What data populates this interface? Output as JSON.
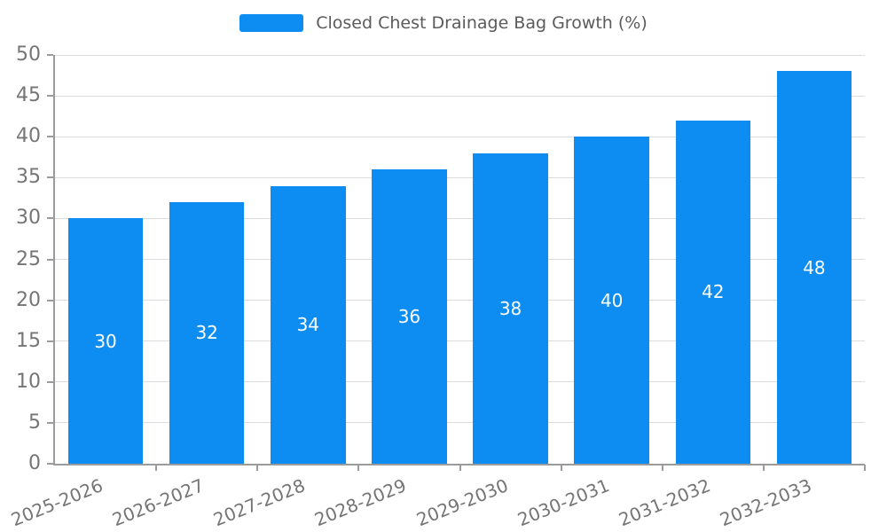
{
  "colors": {
    "bar": "#0D8DF2",
    "grid": "#DCDCDC",
    "axis": "#9B9B9B",
    "tick_text": "#757575",
    "legend_text": "#5B5B5B",
    "bar_label": "#FFFFFF",
    "background": "#FFFFFF"
  },
  "legend": {
    "label": "Closed Chest Drainage Bag Growth (%)"
  },
  "chart_data": {
    "type": "bar",
    "title": "Closed Chest Drainage Bag Growth (%)",
    "categories": [
      "2025-2026",
      "2026-2027",
      "2027-2028",
      "2028-2029",
      "2029-2030",
      "2030-2031",
      "2031-2032",
      "2032-2033"
    ],
    "values": [
      30,
      32,
      34,
      36,
      38,
      40,
      42,
      48
    ],
    "xlabel": "",
    "ylabel": "",
    "ylim": [
      0,
      50
    ],
    "ytick_step": 5,
    "grid": true,
    "legend_position": "top-center",
    "bar_labels_shown": true,
    "bar_label_position": "inside-center",
    "x_label_rotation_deg": -22
  }
}
